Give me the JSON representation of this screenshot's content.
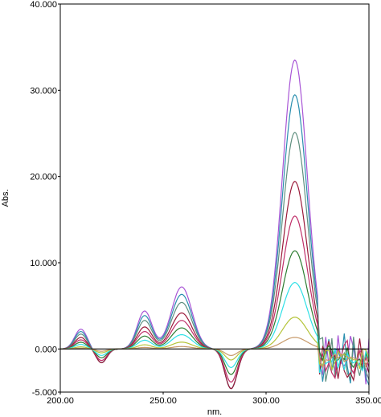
{
  "chart_data": {
    "type": "line",
    "title": "",
    "xlabel": "nm.",
    "ylabel": "Abs.",
    "xlim": [
      200,
      350
    ],
    "ylim": [
      -5,
      40
    ],
    "x_ticks": [
      200,
      250,
      300,
      350
    ],
    "x_tick_labels": [
      "200.00",
      "250.00",
      "300.00",
      "350.00"
    ],
    "y_ticks": [
      -5,
      0,
      10,
      20,
      30,
      40
    ],
    "y_tick_labels": [
      "-5.000",
      "0.000",
      "10.000",
      "20.000",
      "30.000",
      "40.000"
    ],
    "grid": false,
    "legend": "none",
    "baseline_color": "#000000",
    "peaks": [
      {
        "center": 210,
        "width": 3.0,
        "max": 2.3
      },
      {
        "center": 241,
        "width": 3.6,
        "max": 4.4
      },
      {
        "center": 259,
        "width": 5.0,
        "max": 7.2
      },
      {
        "center": 314,
        "width": 6.0,
        "max": 33.5
      }
    ],
    "troughs": [
      {
        "center": 220,
        "width": 2.6,
        "min": -1.6
      },
      {
        "center": 283,
        "width": 3.0,
        "min": -4.6
      }
    ],
    "cutoff_x": 325,
    "series": [
      {
        "color": "#a855d6",
        "scale": 1.0
      },
      {
        "color": "#2a8faf",
        "scale": 0.88
      },
      {
        "color": "#5f8f7f",
        "scale": 0.75
      },
      {
        "color": "#9b1b3a",
        "scale": 0.58
      },
      {
        "color": "#c0306a",
        "scale": 0.46
      },
      {
        "color": "#2e7d32",
        "scale": 0.34
      },
      {
        "color": "#2ee0e6",
        "scale": 0.23
      },
      {
        "color": "#b5c43a",
        "scale": 0.11
      },
      {
        "color": "#c79a6a",
        "scale": 0.04
      }
    ]
  }
}
